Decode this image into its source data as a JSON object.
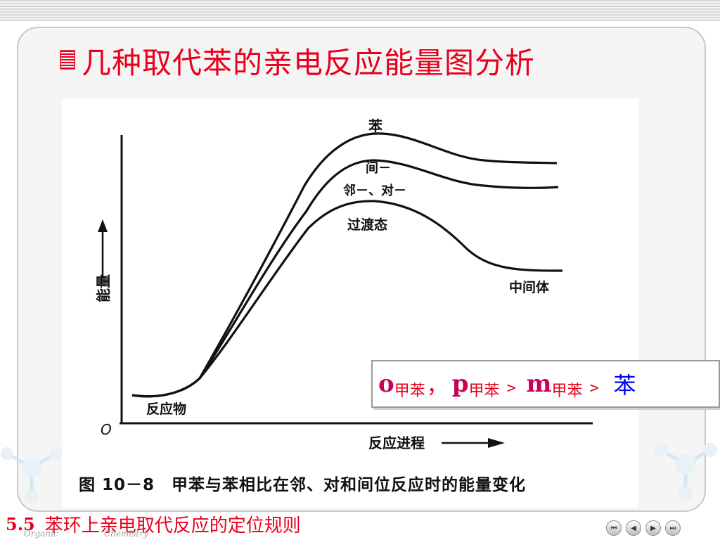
{
  "title": "几种取代苯的亲电反应能量图分析",
  "figure": {
    "caption": "图 10－8　甲苯与苯相比在邻、对和间位反应时的能量变化",
    "y_axis_label": "能量",
    "x_axis_label": "反应进程",
    "origin_label": "O",
    "curve_labels": {
      "benzene": "苯",
      "meta": "间－",
      "ortho_para": "邻－、对－",
      "transition_state": "过渡态",
      "intermediate": "中间体",
      "reactant": "反应物"
    }
  },
  "order": {
    "o": "o",
    "p": "p",
    "m": "m",
    "sub": "甲苯",
    "comma": "，",
    "gt": "﹥",
    "final": "苯"
  },
  "footer": {
    "section_number": "5.5",
    "section_title": "苯环上亲电取代反应的定位规则",
    "watermark_left": "Organic",
    "watermark_right": "Chemistry"
  },
  "nav": {
    "first": "⏮",
    "prev": "◀",
    "next": "▶",
    "last": "⏭"
  },
  "colors": {
    "title": "#e8001c",
    "order_main": "#c8005a",
    "order_final": "#0000ee"
  }
}
